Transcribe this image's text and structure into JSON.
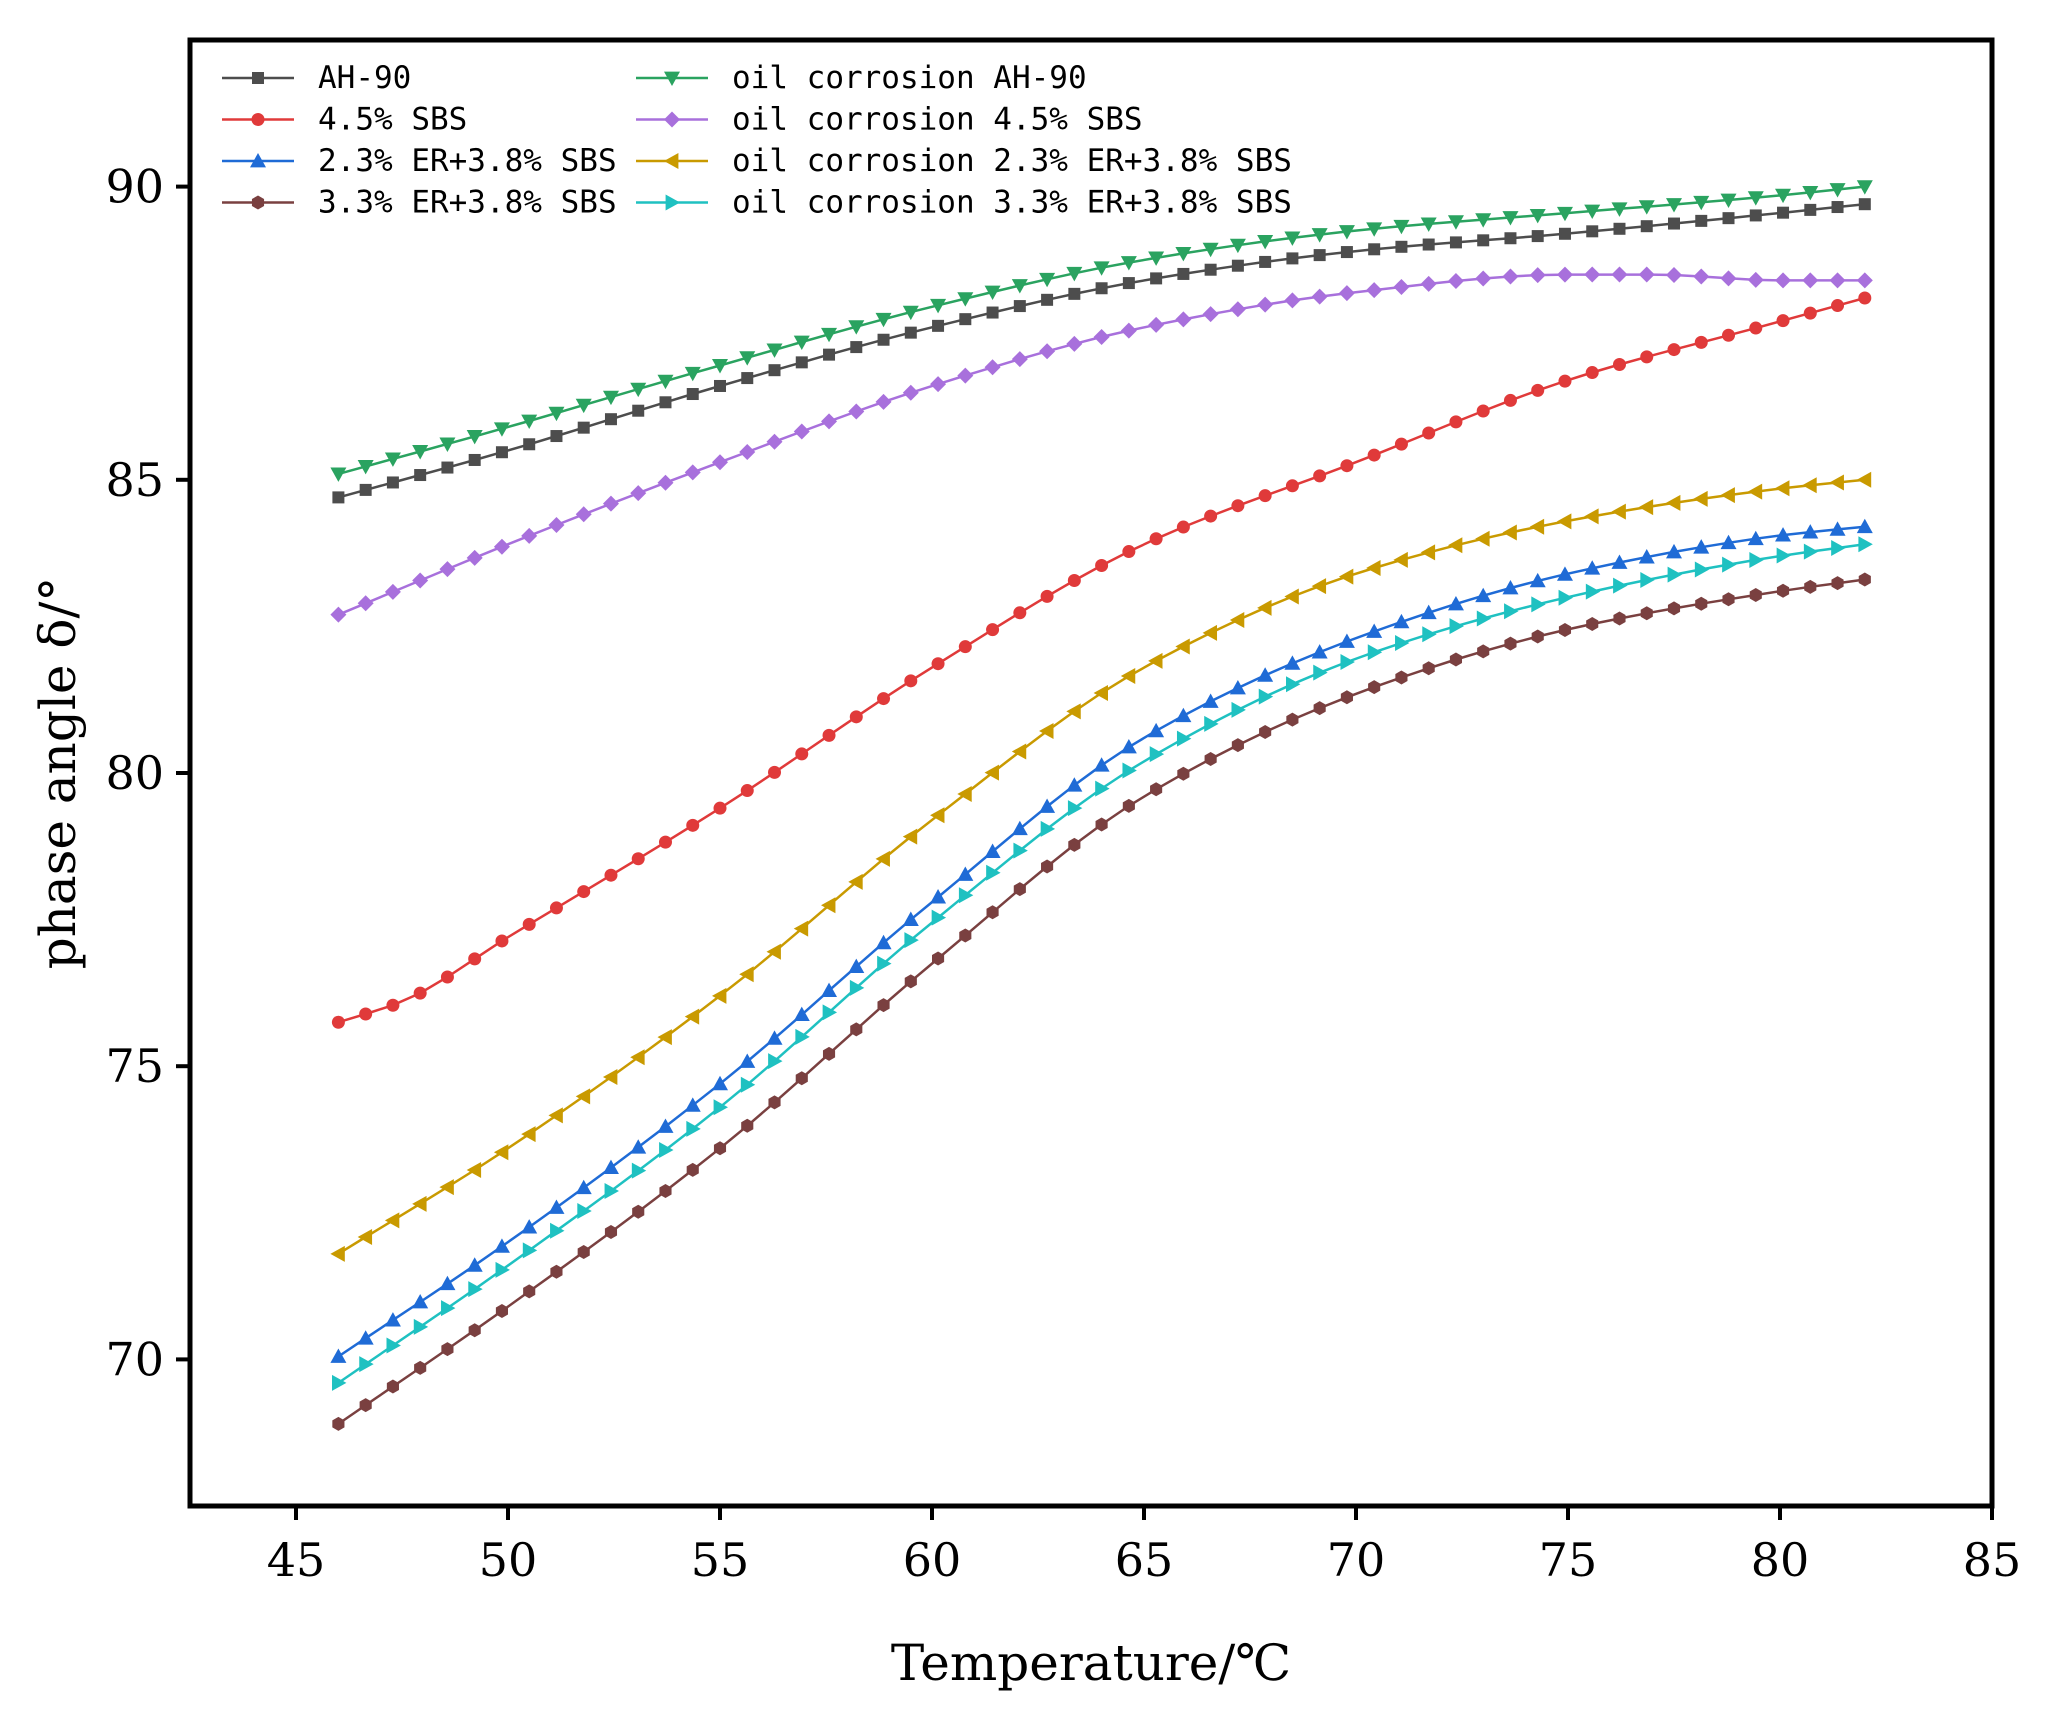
{
  "chart_data": {
    "type": "line",
    "title": "",
    "xlabel": "Temperature/℃",
    "ylabel": "phase angle δ/°",
    "xlim": [
      42.5,
      85
    ],
    "ylim": [
      67.5,
      92.5
    ],
    "xticks": [
      45,
      50,
      55,
      60,
      65,
      70,
      75,
      80,
      85
    ],
    "yticks": [
      70,
      75,
      80,
      85,
      90
    ],
    "grid": false,
    "legend_position": "top-left",
    "x": [
      46,
      82
    ],
    "series": [
      {
        "name": "AH-90",
        "color": "#4d4d4d",
        "marker": "square",
        "values": [
          [
            46,
            84.7
          ],
          [
            50,
            85.5
          ],
          [
            55,
            86.6
          ],
          [
            60,
            87.6
          ],
          [
            65,
            88.4
          ],
          [
            70,
            88.9
          ],
          [
            75,
            89.2
          ],
          [
            80,
            89.55
          ],
          [
            82,
            89.7
          ]
        ]
      },
      {
        "name": "4.5% SBS",
        "color": "#e03a3a",
        "marker": "circle",
        "values": [
          [
            46,
            75.75
          ],
          [
            47.5,
            76.1
          ],
          [
            50,
            77.2
          ],
          [
            55,
            79.4
          ],
          [
            60,
            81.8
          ],
          [
            65,
            83.9
          ],
          [
            70,
            85.3
          ],
          [
            75,
            86.7
          ],
          [
            80,
            87.7
          ],
          [
            82,
            88.1
          ]
        ]
      },
      {
        "name": "2.3% ER+3.8% SBS",
        "color": "#1f6bd6",
        "marker": "triangle-up",
        "values": [
          [
            46,
            70.05
          ],
          [
            50,
            72.0
          ],
          [
            55,
            74.7
          ],
          [
            60,
            77.8
          ],
          [
            65,
            80.6
          ],
          [
            70,
            82.3
          ],
          [
            75,
            83.4
          ],
          [
            80,
            84.05
          ],
          [
            82,
            84.2
          ]
        ]
      },
      {
        "name": "3.3% ER+3.8% SBS",
        "color": "#7a4040",
        "marker": "hexagon",
        "values": [
          [
            46,
            68.9
          ],
          [
            50,
            70.9
          ],
          [
            55,
            73.6
          ],
          [
            60,
            76.75
          ],
          [
            65,
            79.6
          ],
          [
            70,
            81.35
          ],
          [
            75,
            82.45
          ],
          [
            80,
            83.1
          ],
          [
            82,
            83.3
          ]
        ]
      },
      {
        "name": "oil corrosion AH-90",
        "color": "#2aa360",
        "marker": "triangle-down",
        "values": [
          [
            46,
            85.1
          ],
          [
            50,
            85.9
          ],
          [
            55,
            86.95
          ],
          [
            60,
            87.95
          ],
          [
            65,
            88.75
          ],
          [
            70,
            89.25
          ],
          [
            75,
            89.55
          ],
          [
            80,
            89.85
          ],
          [
            82,
            90.0
          ]
        ]
      },
      {
        "name": "oil corrosion 4.5% SBS",
        "color": "#a870dc",
        "marker": "diamond",
        "values": [
          [
            46,
            82.7
          ],
          [
            50,
            83.9
          ],
          [
            55,
            85.3
          ],
          [
            60,
            86.6
          ],
          [
            65,
            87.6
          ],
          [
            70,
            88.2
          ],
          [
            75,
            88.5
          ],
          [
            77,
            88.5
          ],
          [
            80,
            88.4
          ],
          [
            82,
            88.4
          ]
        ]
      },
      {
        "name": "oil corrosion 2.3% ER+3.8% SBS",
        "color": "#c99a00",
        "marker": "triangle-left",
        "values": [
          [
            46,
            71.8
          ],
          [
            50,
            73.6
          ],
          [
            55,
            76.2
          ],
          [
            60,
            79.2
          ],
          [
            65,
            81.8
          ],
          [
            70,
            83.4
          ],
          [
            75,
            84.3
          ],
          [
            80,
            84.85
          ],
          [
            82,
            85.0
          ]
        ]
      },
      {
        "name": "oil corrosion 3.3% ER+3.8% SBS",
        "color": "#1fc1c1",
        "marker": "triangle-right",
        "values": [
          [
            46,
            69.6
          ],
          [
            50,
            71.6
          ],
          [
            55,
            74.3
          ],
          [
            60,
            77.45
          ],
          [
            65,
            80.2
          ],
          [
            70,
            81.95
          ],
          [
            75,
            83.0
          ],
          [
            80,
            83.7
          ],
          [
            82,
            83.9
          ]
        ]
      }
    ]
  }
}
